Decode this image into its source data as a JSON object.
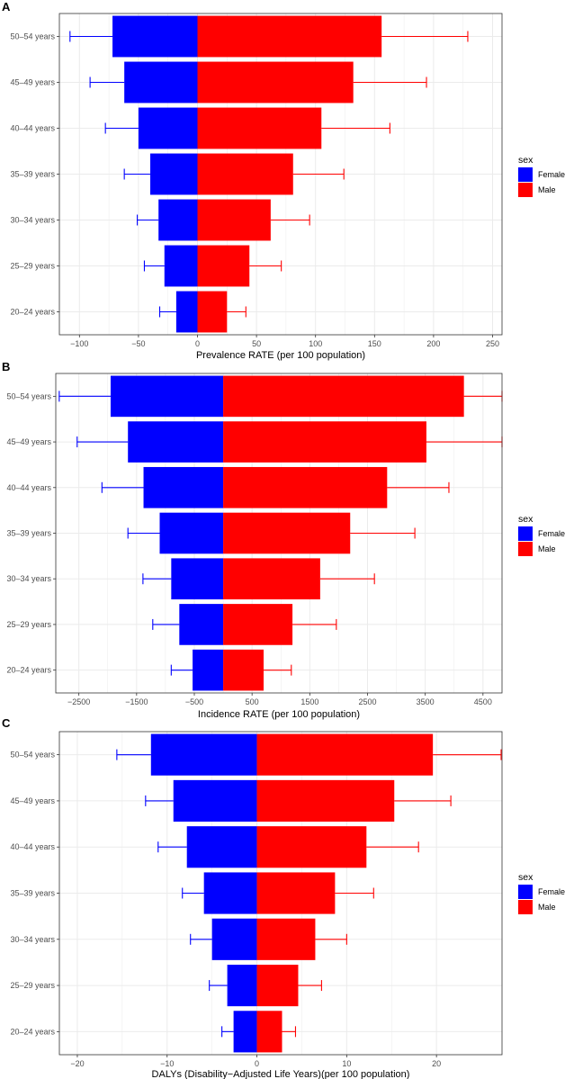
{
  "colors": {
    "female": "#0000ff",
    "male": "#ff0000",
    "grid": "#ebebeb",
    "frame": "#333333"
  },
  "legend": {
    "title": "sex",
    "entries": [
      "Female",
      "Male"
    ]
  },
  "chart_data": [
    {
      "type": "bar",
      "panel": "A",
      "categories": [
        "50–54 years",
        "45–49 years",
        "40–44 years",
        "35–39 years",
        "30–34 years",
        "25–29 years",
        "20–24 years"
      ],
      "xlabel": "Prevalence RATE (per 100 population)",
      "xlim": [
        -117,
        258
      ],
      "xticks": [
        -100,
        -50,
        0,
        50,
        100,
        150,
        200,
        250
      ],
      "xtick_labels": [
        "−100",
        "−50",
        "0",
        "50",
        "100",
        "150",
        "200",
        "250"
      ],
      "series": [
        {
          "name": "Female",
          "values": [
            -72,
            -62,
            -50,
            -40,
            -33,
            -28,
            -18
          ],
          "error_ends": [
            -108,
            -91,
            -78,
            -62,
            -51,
            -45,
            -32
          ]
        },
        {
          "name": "Male",
          "values": [
            156,
            132,
            105,
            81,
            62,
            44,
            25
          ],
          "error_ends": [
            229,
            194,
            163,
            124,
            95,
            71,
            41
          ]
        }
      ]
    },
    {
      "type": "bar",
      "panel": "B",
      "categories": [
        "50–54 years",
        "45–49 years",
        "40–44 years",
        "35–39 years",
        "30–34 years",
        "25–29 years",
        "20–24 years"
      ],
      "xlabel": "Incidence  RATE  (per 100 population)",
      "xlim": [
        -2900,
        4830
      ],
      "xticks": [
        -2500,
        -1500,
        -500,
        500,
        1500,
        2500,
        3500,
        4500
      ],
      "xtick_labels": [
        "−2500",
        "−1500",
        "−500",
        "500",
        "1500",
        "2500",
        "3500",
        "4500"
      ],
      "series": [
        {
          "name": "Female",
          "values": [
            -1950,
            -1650,
            -1380,
            -1100,
            -900,
            -760,
            -530
          ],
          "error_ends": [
            -2840,
            -2530,
            -2100,
            -1650,
            -1390,
            -1220,
            -900
          ]
        },
        {
          "name": "Male",
          "values": [
            4170,
            3520,
            2840,
            2200,
            1680,
            1200,
            700
          ],
          "error_ends": [
            4830,
            4830,
            3910,
            3320,
            2620,
            1960,
            1180
          ]
        }
      ]
    },
    {
      "type": "bar",
      "panel": "C",
      "categories": [
        "50–54 years",
        "45–49 years",
        "40–44 years",
        "35–39 years",
        "30–34 years",
        "25–29 years",
        "20–24 years"
      ],
      "xlabel": "DALYs (Disability−Adjusted Life Years)(per 100 population)",
      "xlim": [
        -22,
        27.3
      ],
      "xticks": [
        -20,
        -10,
        0,
        10,
        20
      ],
      "xtick_labels": [
        "−20",
        "−10",
        "0",
        "10",
        "20"
      ],
      "series": [
        {
          "name": "Female",
          "values": [
            -11.8,
            -9.3,
            -7.8,
            -5.9,
            -5.0,
            -3.3,
            -2.6
          ],
          "error_ends": [
            -15.6,
            -12.4,
            -11.0,
            -8.3,
            -7.4,
            -5.3,
            -3.9
          ]
        },
        {
          "name": "Male",
          "values": [
            19.6,
            15.3,
            12.2,
            8.7,
            6.5,
            4.6,
            2.8
          ],
          "error_ends": [
            27.2,
            21.6,
            18.0,
            13.0,
            10.0,
            7.2,
            4.3
          ]
        }
      ]
    }
  ]
}
